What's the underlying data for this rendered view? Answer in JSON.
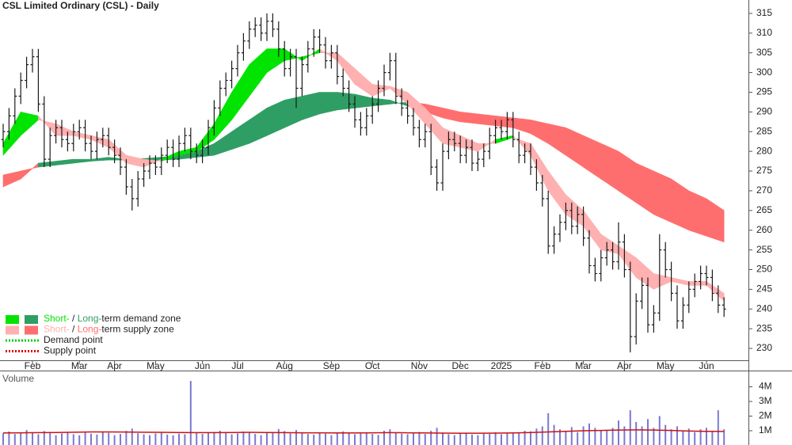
{
  "chart_data": [
    {
      "type": "ohlc",
      "title": "CSL Limited Ordinary (CSL) - Daily",
      "categories": [
        null,
        null,
        null,
        null,
        null,
        "Feb",
        null,
        null,
        null,
        null,
        null,
        null,
        null,
        "Mar",
        null,
        null,
        null,
        null,
        null,
        "Apr",
        null,
        null,
        null,
        null,
        null,
        null,
        "May",
        null,
        null,
        null,
        null,
        null,
        null,
        null,
        "Jun",
        null,
        null,
        null,
        null,
        null,
        "Jul",
        null,
        null,
        null,
        null,
        null,
        null,
        null,
        "Aug",
        null,
        null,
        null,
        null,
        null,
        null,
        null,
        "Sep",
        null,
        null,
        null,
        null,
        null,
        null,
        "Oct",
        null,
        null,
        null,
        null,
        null,
        null,
        null,
        "Nov",
        null,
        null,
        null,
        null,
        null,
        null,
        "Dec",
        null,
        null,
        null,
        null,
        null,
        null,
        "2025",
        null,
        null,
        null,
        null,
        null,
        null,
        "Feb",
        null,
        null,
        null,
        null,
        null,
        null,
        "Mar",
        null,
        null,
        null,
        null,
        null,
        null,
        "Apr",
        null,
        null,
        null,
        null,
        null,
        null,
        "May",
        null,
        null,
        null,
        null,
        null,
        null,
        "Jun",
        null,
        null,
        null
      ],
      "open": [
        283,
        285,
        289,
        294,
        298,
        302,
        304,
        292,
        278,
        284,
        286,
        283,
        282,
        285,
        286,
        282,
        280,
        283,
        284,
        281,
        279,
        276,
        271,
        268,
        273,
        275,
        277,
        276,
        279,
        281,
        278,
        282,
        284,
        280,
        279,
        281,
        286,
        291,
        296,
        298,
        301,
        305,
        308,
        311,
        312,
        310,
        313,
        311,
        306,
        301,
        304,
        296,
        302,
        306,
        309,
        307,
        303,
        305,
        299,
        296,
        292,
        288,
        286,
        289,
        292,
        296,
        300,
        303,
        294,
        291,
        289,
        286,
        283,
        285,
        276,
        272,
        280,
        283,
        282,
        279,
        281,
        277,
        278,
        280,
        284,
        286,
        285,
        288,
        283,
        279,
        280,
        276,
        272,
        268,
        256,
        259,
        262,
        265,
        261,
        264,
        258,
        251,
        249,
        253,
        255,
        252,
        257,
        250,
        233,
        242,
        246,
        236,
        239,
        255,
        250,
        244,
        237,
        241,
        245,
        247,
        249,
        248,
        244,
        241
      ],
      "high": [
        287,
        291,
        296,
        300,
        304,
        306,
        306,
        294,
        286,
        288,
        288,
        285,
        287,
        288,
        288,
        284,
        285,
        286,
        286,
        283,
        281,
        278,
        273,
        275,
        277,
        279,
        279,
        281,
        283,
        283,
        284,
        286,
        286,
        282,
        283,
        288,
        293,
        298,
        300,
        303,
        307,
        310,
        313,
        314,
        314,
        315,
        315,
        313,
        308,
        306,
        306,
        304,
        308,
        311,
        311,
        309,
        307,
        307,
        301,
        298,
        294,
        290,
        291,
        294,
        298,
        302,
        305,
        305,
        296,
        293,
        291,
        288,
        287,
        287,
        278,
        282,
        285,
        285,
        284,
        283,
        283,
        280,
        282,
        286,
        288,
        288,
        290,
        290,
        285,
        282,
        282,
        278,
        274,
        270,
        261,
        264,
        267,
        267,
        266,
        266,
        260,
        253,
        255,
        257,
        257,
        262,
        259,
        252,
        244,
        248,
        248,
        241,
        259,
        257,
        252,
        246,
        243,
        247,
        249,
        251,
        251,
        250,
        246,
        243
      ],
      "low": [
        281,
        283,
        287,
        292,
        296,
        300,
        290,
        276,
        276,
        282,
        281,
        280,
        280,
        283,
        280,
        278,
        278,
        281,
        279,
        277,
        274,
        269,
        265,
        266,
        271,
        273,
        274,
        274,
        277,
        276,
        276,
        280,
        278,
        277,
        277,
        279,
        284,
        289,
        294,
        296,
        299,
        303,
        306,
        309,
        308,
        308,
        309,
        304,
        299,
        299,
        291,
        294,
        300,
        304,
        305,
        301,
        301,
        297,
        294,
        290,
        286,
        284,
        284,
        287,
        290,
        294,
        298,
        292,
        289,
        287,
        284,
        281,
        281,
        274,
        270,
        270,
        278,
        280,
        277,
        277,
        275,
        275,
        276,
        278,
        282,
        283,
        283,
        281,
        277,
        277,
        274,
        270,
        266,
        254,
        254,
        257,
        260,
        259,
        259,
        256,
        249,
        247,
        247,
        251,
        250,
        250,
        248,
        229,
        231,
        240,
        234,
        234,
        237,
        248,
        242,
        235,
        235,
        239,
        243,
        245,
        246,
        242,
        239,
        238
      ],
      "close": [
        285,
        289,
        294,
        298,
        302,
        304,
        292,
        278,
        284,
        286,
        283,
        282,
        285,
        286,
        282,
        280,
        283,
        284,
        281,
        279,
        276,
        271,
        268,
        273,
        275,
        277,
        276,
        279,
        281,
        278,
        282,
        284,
        280,
        279,
        281,
        286,
        291,
        296,
        298,
        301,
        305,
        308,
        311,
        312,
        310,
        313,
        311,
        306,
        301,
        304,
        296,
        302,
        306,
        309,
        307,
        303,
        305,
        299,
        296,
        292,
        288,
        286,
        289,
        292,
        296,
        300,
        303,
        294,
        291,
        289,
        286,
        283,
        285,
        276,
        272,
        280,
        283,
        282,
        279,
        281,
        277,
        278,
        280,
        284,
        286,
        285,
        288,
        283,
        279,
        280,
        276,
        272,
        268,
        256,
        259,
        262,
        265,
        261,
        264,
        258,
        251,
        249,
        253,
        255,
        252,
        257,
        250,
        233,
        242,
        246,
        236,
        239,
        255,
        250,
        244,
        237,
        241,
        245,
        247,
        249,
        248,
        244,
        241,
        240
      ],
      "color": "#1a1a1a",
      "ylim": [
        227,
        318.4
      ],
      "yticks": [
        230,
        235,
        240,
        245,
        250,
        255,
        260,
        265,
        270,
        275,
        280,
        285,
        290,
        295,
        300,
        305,
        310,
        315
      ],
      "bands": [
        {
          "fast": [
            271,
            273,
            277,
            277.5,
            278,
            278,
            278.5,
            278,
            278.2,
            278.5,
            279,
            280,
            282,
            285,
            288,
            291,
            293,
            294,
            295,
            295,
            294.5,
            293.5,
            293,
            291.5,
            290,
            288.5,
            287.5,
            287,
            286.5,
            286,
            284.5,
            282,
            279,
            276,
            273,
            270,
            267,
            264,
            262,
            260,
            258.5,
            257
          ],
          "slow": [
            274,
            275,
            276,
            276.5,
            277,
            277.5,
            277.8,
            277.8,
            277.6,
            277.8,
            278,
            278.5,
            279,
            280.5,
            282,
            284,
            286,
            288,
            289.5,
            290.5,
            291,
            291.5,
            292,
            292.5,
            292,
            291,
            290,
            289.5,
            289,
            288.5,
            288,
            287,
            286,
            284,
            282,
            280,
            277,
            275,
            273,
            270,
            268,
            265
          ],
          "demand_color": "#2f9e64",
          "supply_color": "#ff6e6e"
        },
        {
          "fast": [
            282,
            290,
            289,
            284,
            284,
            283,
            281,
            277,
            276,
            278,
            280,
            281,
            287,
            295,
            302,
            306,
            306,
            303,
            306,
            303,
            297,
            294,
            296,
            292,
            287,
            282,
            281,
            280,
            283,
            284,
            279,
            270,
            264,
            261,
            255,
            254,
            248,
            245,
            247,
            246,
            246,
            242
          ],
          "slow": [
            279,
            284,
            288,
            287,
            285,
            284,
            283,
            279,
            278,
            277.5,
            279,
            280,
            283,
            288,
            294,
            300,
            303,
            304,
            305,
            305,
            301,
            297,
            296.5,
            295,
            291,
            286,
            284,
            282,
            282,
            283.5,
            282,
            275,
            269,
            265,
            259,
            256,
            253,
            249,
            248,
            247,
            247,
            244
          ],
          "demand_color": "#00e400",
          "supply_color": "#ffb0b0"
        }
      ],
      "legend": {
        "position": "lower left",
        "items": [
          {
            "parts": [
              "Short-",
              " / ",
              "Long-",
              "term demand zone"
            ],
            "colors": [
              "#00e400",
              "#2f9e64"
            ]
          },
          {
            "parts": [
              "Short-",
              " / ",
              "Long-",
              "term supply zone"
            ],
            "colors": [
              "#ffb0b0",
              "#ff6e6e"
            ]
          },
          {
            "parts": [
              "Demand point"
            ],
            "colors": [
              "#00cc00"
            ]
          },
          {
            "parts": [
              "Supply point"
            ],
            "colors": [
              "#dd0000"
            ]
          }
        ]
      }
    },
    {
      "type": "bar",
      "title": "Volume",
      "color": "#7a7ad0",
      "values": [
        820000,
        950000,
        780000,
        880000,
        1050000,
        900000,
        760000,
        980000,
        850000,
        700000,
        820000,
        910000,
        760000,
        690000,
        880000,
        800000,
        740000,
        920000,
        860000,
        700000,
        780000,
        990000,
        1150000,
        830000,
        760000,
        700000,
        820000,
        880000,
        740000,
        690000,
        800000,
        760000,
        4400000,
        900000,
        780000,
        850000,
        920000,
        1000000,
        880000,
        760000,
        820000,
        950000,
        870000,
        780000,
        700000,
        860000,
        910000,
        1120000,
        980000,
        820000,
        1050000,
        900000,
        780000,
        740000,
        860000,
        800000,
        700000,
        880000,
        960000,
        840000,
        760000,
        820000,
        900000,
        780000,
        720000,
        1000000,
        1100000,
        880000,
        800000,
        760000,
        840000,
        920000,
        780000,
        1000000,
        1200000,
        880000,
        760000,
        700000,
        820000,
        860000,
        740000,
        700000,
        800000,
        780000,
        900000,
        760000,
        840000,
        820000,
        880000,
        1000000,
        960000,
        1150000,
        1300000,
        2200000,
        1400000,
        1100000,
        1000000,
        1250000,
        900000,
        1300000,
        1500000,
        1200000,
        1050000,
        1000000,
        1200000,
        1700000,
        1300000,
        2400000,
        1600000,
        1300000,
        1800000,
        1200000,
        2000000,
        1400000,
        1100000,
        1300000,
        1000000,
        1150000,
        900000,
        1100000,
        1200000,
        1000000,
        2400000,
        1100000
      ],
      "average": [
        850000,
        860000,
        870000,
        880000,
        900000,
        920000,
        920000,
        910000,
        900000,
        890000,
        880000,
        870000,
        870000,
        880000,
        890000,
        880000,
        870000,
        860000,
        860000,
        850000,
        850000,
        860000,
        870000,
        860000,
        850000,
        840000,
        830000,
        830000,
        840000,
        850000,
        880000,
        920000,
        960000,
        1000000,
        1020000,
        1050000,
        1060000,
        1050000,
        1020000,
        980000,
        960000,
        950000
      ],
      "average_color": "#cc1111",
      "ylim": [
        0,
        5000000
      ],
      "yticks": [
        {
          "value": 1000000,
          "label": "1M"
        },
        {
          "value": 2000000,
          "label": "2M"
        },
        {
          "value": 3000000,
          "label": "3M"
        },
        {
          "value": 4000000,
          "label": "4M"
        }
      ]
    }
  ]
}
